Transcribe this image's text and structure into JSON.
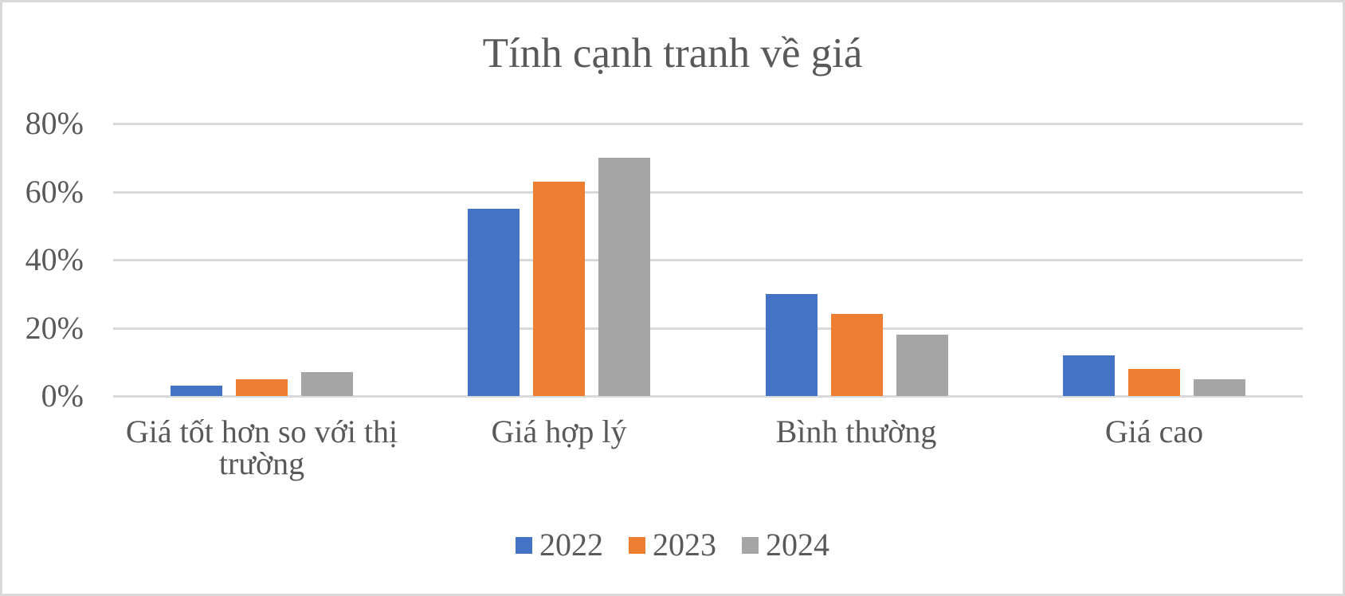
{
  "chart_data": {
    "type": "bar",
    "title": "Tính cạnh tranh về giá",
    "categories": [
      "Giá tốt hơn so với thị trường",
      "Giá hợp lý",
      "Bình thường",
      "Giá cao"
    ],
    "category_label_lines": [
      [
        "Giá tốt hơn so với thị",
        "trường"
      ],
      [
        "Giá hợp lý"
      ],
      [
        "Bình thường"
      ],
      [
        "Giá cao"
      ]
    ],
    "series": [
      {
        "name": "2022",
        "color": "#4472C4",
        "values": [
          3,
          55,
          30,
          12
        ]
      },
      {
        "name": "2023",
        "color": "#ED7D31",
        "values": [
          5,
          63,
          24,
          8
        ]
      },
      {
        "name": "2024",
        "color": "#A5A5A5",
        "values": [
          7,
          70,
          18,
          5
        ]
      }
    ],
    "value_unit": "%",
    "xlabel": "",
    "ylabel": "",
    "ylim": [
      0,
      80
    ],
    "yticks": [
      "0%",
      "20%",
      "40%",
      "60%",
      "80%"
    ],
    "ytick_values": [
      0,
      20,
      40,
      60,
      80
    ],
    "grid": true,
    "legend_position": "bottom"
  },
  "title": "Tính cạnh tranh về giá",
  "legend": [
    {
      "label": "2022",
      "color": "#4472C4"
    },
    {
      "label": "2023",
      "color": "#ED7D31"
    },
    {
      "label": "2024",
      "color": "#A5A5A5"
    }
  ],
  "axis": {
    "y_ticks": [
      "80%",
      "60%",
      "40%",
      "20%",
      "0%"
    ]
  },
  "categories": {
    "c0_line1": "Giá tốt hơn so với thị",
    "c0_line2": "trường",
    "c1": "Giá hợp lý",
    "c2": "Bình thường",
    "c3": "Giá cao"
  },
  "colors": {
    "text": "#595959",
    "grid": "#D9D9D9",
    "border": "#D9D9D9"
  }
}
